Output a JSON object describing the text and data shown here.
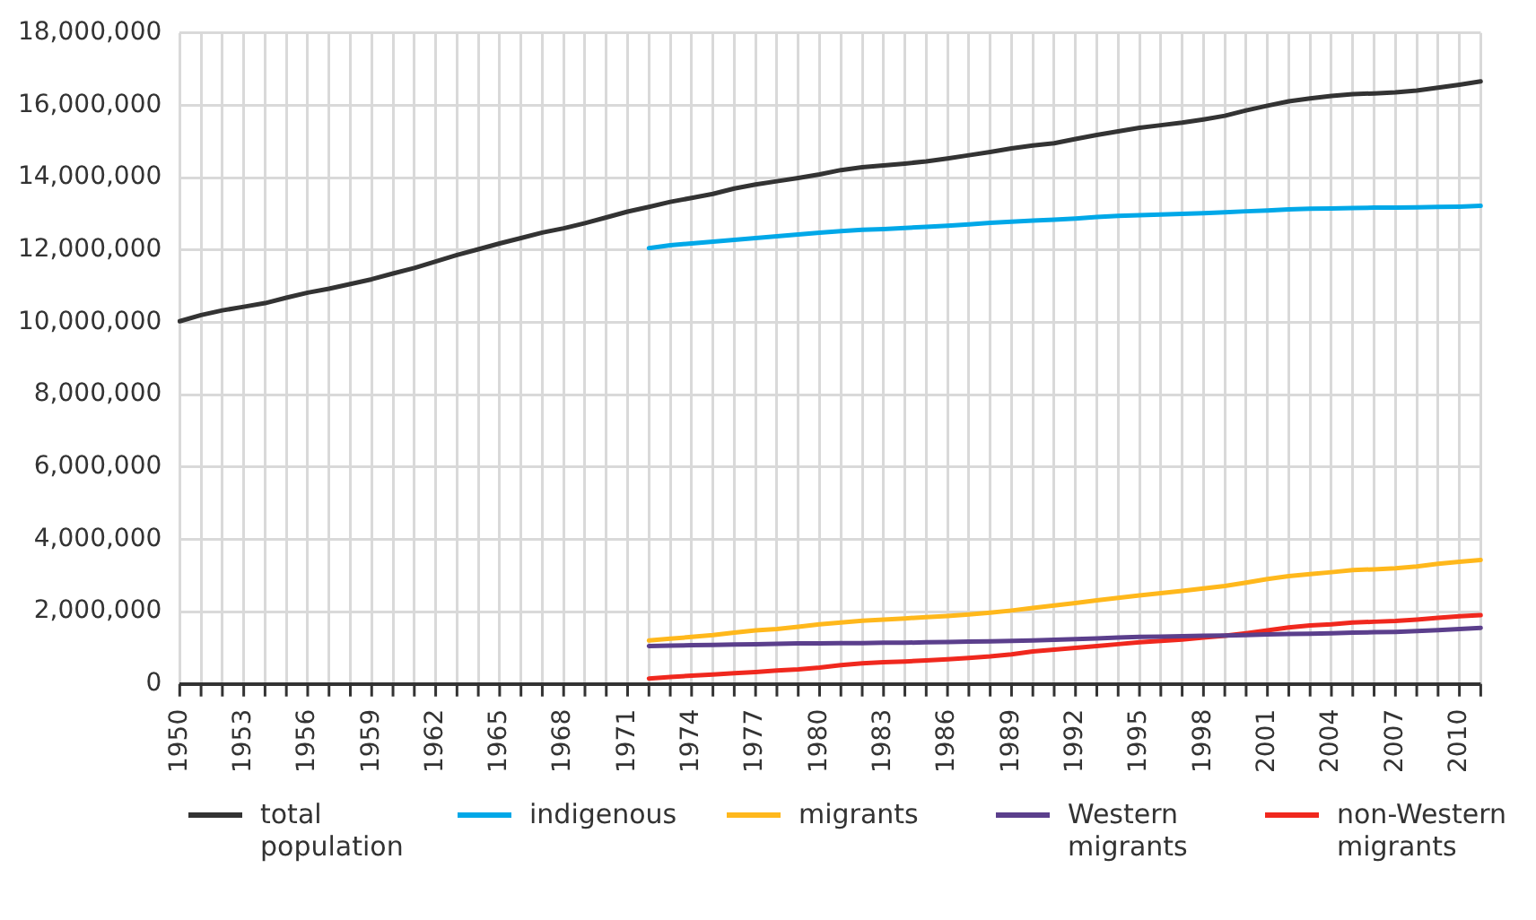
{
  "chart_data": {
    "type": "line",
    "categories": [
      "1950",
      null,
      null,
      "1953",
      null,
      null,
      "1956",
      null,
      null,
      "1959",
      null,
      null,
      "1962",
      null,
      null,
      "1965",
      null,
      null,
      "1968",
      null,
      null,
      "1971",
      null,
      null,
      "1974",
      null,
      null,
      "1977",
      null,
      null,
      "1980",
      null,
      null,
      "1983",
      null,
      null,
      "1986",
      null,
      null,
      "1989",
      null,
      null,
      "1992",
      null,
      null,
      "1995",
      null,
      null,
      "1998",
      null,
      null,
      "2001",
      null,
      null,
      "2004",
      null,
      null,
      "2007",
      null,
      null,
      "2010",
      null
    ],
    "ylim": [
      0,
      18000000
    ],
    "yticks": [
      0,
      {
        "value": 2000000,
        "label": "2,000,000"
      },
      {
        "value": 4000000,
        "label": "4,000,000"
      },
      {
        "value": 6000000,
        "label": "6,000,000"
      },
      {
        "value": 8000000,
        "label": "8,000,000"
      },
      {
        "value": 10000000,
        "label": "10,000,000"
      },
      {
        "value": 12000000,
        "label": "12,000,000"
      },
      {
        "value": 14000000,
        "label": "14,000,000"
      },
      {
        "value": 16000000,
        "label": "16,000,000"
      },
      {
        "value": 18000000,
        "label": "18,000,000"
      }
    ],
    "grid": true,
    "legend": "bottom",
    "marker": "none",
    "line_style": "solid",
    "series": [
      {
        "name": "total population",
        "color": "#333333",
        "values": [
          10030000,
          10200000,
          10330000,
          10430000,
          10530000,
          10680000,
          10820000,
          10930000,
          11060000,
          11190000,
          11350000,
          11500000,
          11680000,
          11860000,
          12020000,
          12180000,
          12330000,
          12480000,
          12600000,
          12740000,
          12900000,
          13060000,
          13190000,
          13330000,
          13440000,
          13550000,
          13700000,
          13810000,
          13900000,
          13990000,
          14090000,
          14210000,
          14290000,
          14340000,
          14390000,
          14450000,
          14530000,
          14620000,
          14710000,
          14810000,
          14890000,
          14950000,
          15070000,
          15180000,
          15280000,
          15380000,
          15450000,
          15520000,
          15610000,
          15710000,
          15860000,
          15990000,
          16110000,
          16190000,
          16260000,
          16310000,
          16330000,
          16360000,
          16410000,
          16490000,
          16570000,
          16660000
        ]
      },
      {
        "name": "indigenous",
        "color": "#00a8e8",
        "values": [
          null,
          null,
          null,
          null,
          null,
          null,
          null,
          null,
          null,
          null,
          null,
          null,
          null,
          null,
          null,
          null,
          null,
          null,
          null,
          null,
          null,
          null,
          12050000,
          12130000,
          12180000,
          12230000,
          12280000,
          12330000,
          12380000,
          12430000,
          12480000,
          12520000,
          12560000,
          12580000,
          12610000,
          12640000,
          12670000,
          12710000,
          12750000,
          12780000,
          12810000,
          12840000,
          12870000,
          12910000,
          12940000,
          12960000,
          12980000,
          13000000,
          13020000,
          13040000,
          13070000,
          13090000,
          13120000,
          13140000,
          13150000,
          13160000,
          13170000,
          13170000,
          13180000,
          13190000,
          13200000,
          13220000
        ]
      },
      {
        "name": "migrants",
        "color": "#ffb81c",
        "values": [
          null,
          null,
          null,
          null,
          null,
          null,
          null,
          null,
          null,
          null,
          null,
          null,
          null,
          null,
          null,
          null,
          null,
          null,
          null,
          null,
          null,
          null,
          1200000,
          1250000,
          1300000,
          1350000,
          1420000,
          1480000,
          1520000,
          1580000,
          1650000,
          1700000,
          1750000,
          1780000,
          1810000,
          1850000,
          1880000,
          1920000,
          1970000,
          2030000,
          2100000,
          2170000,
          2240000,
          2310000,
          2380000,
          2450000,
          2510000,
          2570000,
          2640000,
          2710000,
          2800000,
          2900000,
          2980000,
          3040000,
          3090000,
          3150000,
          3170000,
          3200000,
          3250000,
          3320000,
          3380000,
          3430000
        ]
      },
      {
        "name": "Western migrants",
        "color": "#5b3f8c",
        "values": [
          null,
          null,
          null,
          null,
          null,
          null,
          null,
          null,
          null,
          null,
          null,
          null,
          null,
          null,
          null,
          null,
          null,
          null,
          null,
          null,
          null,
          null,
          1050000,
          1060000,
          1070000,
          1080000,
          1090000,
          1100000,
          1110000,
          1120000,
          1120000,
          1130000,
          1130000,
          1140000,
          1140000,
          1150000,
          1160000,
          1170000,
          1180000,
          1190000,
          1200000,
          1220000,
          1240000,
          1260000,
          1280000,
          1300000,
          1310000,
          1320000,
          1330000,
          1340000,
          1350000,
          1370000,
          1380000,
          1390000,
          1400000,
          1420000,
          1430000,
          1440000,
          1460000,
          1490000,
          1520000,
          1550000
        ]
      },
      {
        "name": "non-Western migrants",
        "color": "#f0281e",
        "values": [
          null,
          null,
          null,
          null,
          null,
          null,
          null,
          null,
          null,
          null,
          null,
          null,
          null,
          null,
          null,
          null,
          null,
          null,
          null,
          null,
          null,
          null,
          150000,
          190000,
          230000,
          260000,
          300000,
          330000,
          370000,
          400000,
          450000,
          520000,
          570000,
          600000,
          620000,
          650000,
          680000,
          720000,
          760000,
          820000,
          900000,
          950000,
          1000000,
          1050000,
          1100000,
          1150000,
          1190000,
          1230000,
          1280000,
          1330000,
          1400000,
          1480000,
          1560000,
          1620000,
          1650000,
          1700000,
          1720000,
          1740000,
          1780000,
          1830000,
          1870000,
          1900000
        ]
      }
    ]
  }
}
